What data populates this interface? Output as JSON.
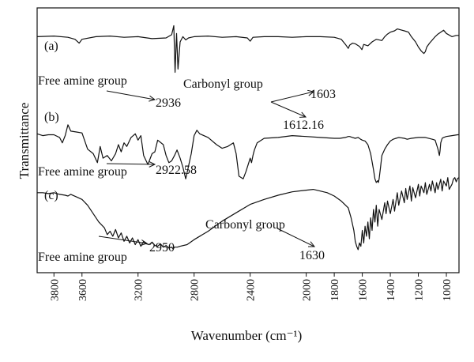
{
  "chart_data": {
    "type": "line",
    "title": "",
    "xlabel": "Wavenumber (cm⁻¹)",
    "ylabel": "Transmittance",
    "xlim": [
      3920,
      910
    ],
    "x_reversed": true,
    "x_ticks": [
      3800,
      3600,
      3200,
      2800,
      2400,
      2000,
      1800,
      1600,
      1400,
      1200,
      1000
    ],
    "y_ticks": false,
    "grid": false,
    "series": [
      {
        "name": "(a)",
        "x": [
          3920,
          3800,
          3700,
          3650,
          3620,
          3600,
          3500,
          3400,
          3300,
          3200,
          3100,
          3000,
          2960,
          2945,
          2936,
          2925,
          2915,
          2900,
          2880,
          2860,
          2840,
          2820,
          2800,
          2700,
          2600,
          2500,
          2420,
          2400,
          2380,
          2300,
          2200,
          2100,
          2000,
          1900,
          1800,
          1750,
          1720,
          1700,
          1690,
          1670,
          1650,
          1620,
          1603,
          1590,
          1560,
          1530,
          1500,
          1460,
          1440,
          1420,
          1400,
          1370,
          1350,
          1300,
          1270,
          1250,
          1220,
          1200,
          1180,
          1160,
          1150,
          1140,
          1120,
          1100,
          1080,
          1060,
          1040,
          1020,
          1000,
          960,
          930,
          910
        ],
        "y": [
          0.8,
          0.81,
          0.79,
          0.76,
          0.7,
          0.76,
          0.8,
          0.81,
          0.79,
          0.8,
          0.77,
          0.78,
          0.83,
          0.97,
          0.25,
          0.85,
          0.3,
          0.72,
          0.8,
          0.75,
          0.78,
          0.79,
          0.8,
          0.81,
          0.79,
          0.8,
          0.78,
          0.73,
          0.79,
          0.8,
          0.8,
          0.79,
          0.8,
          0.8,
          0.79,
          0.76,
          0.68,
          0.62,
          0.67,
          0.7,
          0.69,
          0.65,
          0.6,
          0.68,
          0.66,
          0.72,
          0.76,
          0.74,
          0.8,
          0.84,
          0.87,
          0.89,
          0.92,
          0.89,
          0.87,
          0.8,
          0.72,
          0.64,
          0.58,
          0.54,
          0.57,
          0.64,
          0.7,
          0.75,
          0.8,
          0.84,
          0.87,
          0.9,
          0.85,
          0.8,
          0.82,
          0.82
        ]
      },
      {
        "name": "(b)",
        "x": [
          3920,
          3880,
          3840,
          3800,
          3760,
          3740,
          3720,
          3700,
          3680,
          3640,
          3600,
          3560,
          3520,
          3490,
          3470,
          3450,
          3420,
          3390,
          3360,
          3340,
          3320,
          3300,
          3280,
          3250,
          3220,
          3200,
          3180,
          3160,
          3130,
          3100,
          3080,
          3060,
          3020,
          3000,
          2980,
          2960,
          2940,
          2922,
          2900,
          2880,
          2860,
          2840,
          2820,
          2800,
          2780,
          2760,
          2700,
          2640,
          2600,
          2560,
          2520,
          2500,
          2480,
          2450,
          2430,
          2410,
          2400,
          2390,
          2380,
          2370,
          2350,
          2320,
          2300,
          2200,
          2100,
          2000,
          1900,
          1800,
          1760,
          1720,
          1700,
          1690,
          1670,
          1650,
          1630,
          1612,
          1600,
          1580,
          1560,
          1540,
          1520,
          1510,
          1500,
          1490,
          1485,
          1480,
          1470,
          1460,
          1440,
          1420,
          1400,
          1380,
          1360,
          1340,
          1300,
          1280,
          1250,
          1200,
          1150,
          1100,
          1080,
          1070,
          1060,
          1050,
          1045,
          1040,
          1030,
          1020,
          1000,
          960,
          920,
          910
        ],
        "y": [
          0.62,
          0.6,
          0.61,
          0.61,
          0.58,
          0.52,
          0.6,
          0.72,
          0.65,
          0.64,
          0.63,
          0.45,
          0.4,
          0.3,
          0.48,
          0.35,
          0.38,
          0.32,
          0.4,
          0.5,
          0.42,
          0.52,
          0.48,
          0.58,
          0.62,
          0.55,
          0.6,
          0.38,
          0.28,
          0.4,
          0.42,
          0.55,
          0.5,
          0.38,
          0.3,
          0.32,
          0.38,
          0.44,
          0.35,
          0.25,
          0.12,
          0.26,
          0.4,
          0.6,
          0.66,
          0.62,
          0.58,
          0.5,
          0.46,
          0.48,
          0.52,
          0.4,
          0.15,
          0.12,
          0.2,
          0.3,
          0.35,
          0.3,
          0.38,
          0.44,
          0.52,
          0.55,
          0.57,
          0.58,
          0.6,
          0.59,
          0.58,
          0.57,
          0.57,
          0.58,
          0.59,
          0.59,
          0.58,
          0.57,
          0.58,
          0.56,
          0.55,
          0.54,
          0.5,
          0.4,
          0.22,
          0.12,
          0.08,
          0.1,
          0.08,
          0.12,
          0.25,
          0.38,
          0.45,
          0.5,
          0.54,
          0.56,
          0.57,
          0.58,
          0.57,
          0.56,
          0.57,
          0.58,
          0.58,
          0.56,
          0.55,
          0.5,
          0.45,
          0.38,
          0.43,
          0.52,
          0.57,
          0.58,
          0.59,
          0.6,
          0.61,
          0.61
        ]
      },
      {
        "name": "(c)",
        "x": [
          3920,
          3880,
          3840,
          3800,
          3760,
          3720,
          3700,
          3680,
          3640,
          3600,
          3560,
          3520,
          3500,
          3480,
          3440,
          3420,
          3400,
          3380,
          3360,
          3340,
          3320,
          3300,
          3280,
          3260,
          3240,
          3220,
          3200,
          3180,
          3160,
          3140,
          3120,
          3100,
          3080,
          3060,
          3040,
          3020,
          3000,
          2980,
          2960,
          2950,
          2940,
          2920,
          2900,
          2850,
          2800,
          2700,
          2600,
          2500,
          2400,
          2300,
          2200,
          2100,
          2000,
          1950,
          1900,
          1850,
          1800,
          1750,
          1700,
          1680,
          1660,
          1650,
          1640,
          1630,
          1620,
          1610,
          1600,
          1590,
          1580,
          1570,
          1560,
          1550,
          1540,
          1530,
          1520,
          1510,
          1500,
          1490,
          1480,
          1460,
          1440,
          1430,
          1420,
          1400,
          1380,
          1370,
          1350,
          1340,
          1320,
          1300,
          1290,
          1280,
          1260,
          1250,
          1240,
          1220,
          1200,
          1190,
          1180,
          1160,
          1150,
          1140,
          1120,
          1110,
          1100,
          1080,
          1070,
          1060,
          1040,
          1030,
          1020,
          1000,
          990,
          980,
          960,
          950,
          940,
          930,
          920,
          910
        ],
        "y": [
          0.7,
          0.7,
          0.69,
          0.7,
          0.68,
          0.67,
          0.66,
          0.68,
          0.65,
          0.62,
          0.55,
          0.45,
          0.4,
          0.35,
          0.28,
          0.2,
          0.24,
          0.18,
          0.26,
          0.16,
          0.22,
          0.12,
          0.18,
          0.1,
          0.16,
          0.08,
          0.14,
          0.06,
          0.12,
          0.09,
          0.08,
          0.11,
          0.07,
          0.06,
          0.09,
          0.05,
          0.07,
          0.04,
          0.05,
          0.03,
          0.05,
          0.05,
          0.06,
          0.08,
          0.14,
          0.24,
          0.36,
          0.46,
          0.56,
          0.62,
          0.67,
          0.71,
          0.73,
          0.74,
          0.72,
          0.7,
          0.66,
          0.6,
          0.52,
          0.4,
          0.25,
          0.12,
          0.06,
          0.02,
          0.1,
          0.06,
          0.25,
          0.1,
          0.3,
          0.18,
          0.35,
          0.15,
          0.4,
          0.25,
          0.5,
          0.35,
          0.55,
          0.3,
          0.5,
          0.38,
          0.58,
          0.45,
          0.6,
          0.45,
          0.62,
          0.48,
          0.7,
          0.55,
          0.72,
          0.58,
          0.75,
          0.62,
          0.78,
          0.6,
          0.76,
          0.64,
          0.8,
          0.66,
          0.78,
          0.7,
          0.82,
          0.68,
          0.8,
          0.72,
          0.84,
          0.7,
          0.82,
          0.74,
          0.86,
          0.72,
          0.84,
          0.78,
          0.88,
          0.74,
          0.8,
          0.86,
          0.88,
          0.83,
          0.87,
          0.88
        ]
      }
    ],
    "trace_labels": [
      {
        "series": 0,
        "text": "(a)"
      },
      {
        "series": 1,
        "text": "(b)"
      },
      {
        "series": 2,
        "text": "(c)"
      }
    ],
    "annotations": [
      {
        "text": "Free amine group",
        "kind": "label"
      },
      {
        "text": "2936",
        "kind": "value"
      },
      {
        "text": "Carbonyl group",
        "kind": "label"
      },
      {
        "text": "1603",
        "kind": "value"
      },
      {
        "text": "1612.16",
        "kind": "value"
      },
      {
        "text": "Free amine group",
        "kind": "label"
      },
      {
        "text": "2922.58",
        "kind": "value"
      },
      {
        "text": "Carbonyl group",
        "kind": "label"
      },
      {
        "text": "Free amine group",
        "kind": "label"
      },
      {
        "text": "2950",
        "kind": "value"
      },
      {
        "text": "1630",
        "kind": "value"
      }
    ],
    "colors": {
      "line": "#111111",
      "axis": "#111111"
    }
  }
}
